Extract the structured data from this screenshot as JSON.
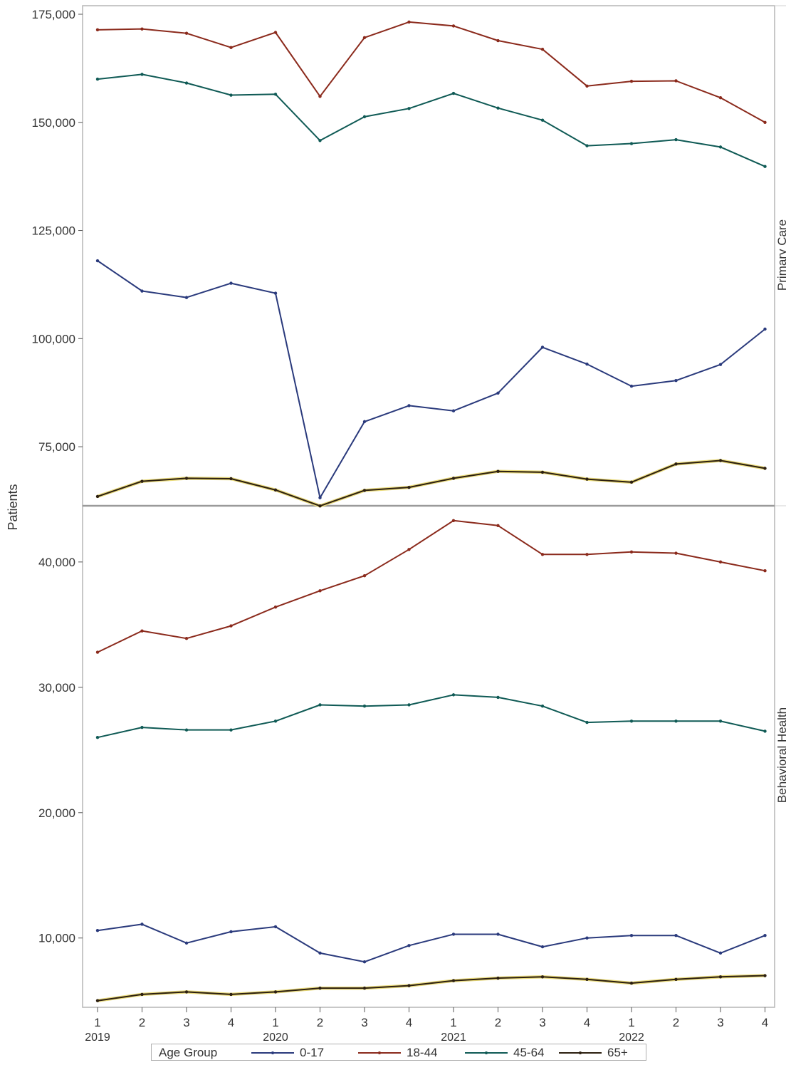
{
  "chart_data": {
    "type": "line",
    "ylabel": "Patients",
    "x": [
      "1",
      "2",
      "3",
      "4",
      "1",
      "2",
      "3",
      "4",
      "1",
      "2",
      "3",
      "4",
      "1",
      "2",
      "3",
      "4"
    ],
    "years": [
      "2019",
      "2020",
      "2021",
      "2022"
    ],
    "legend": {
      "title": "Age Group",
      "placement": "bottom",
      "entries": [
        "0-17",
        "18-44",
        "45-64",
        "65+"
      ]
    },
    "colors": {
      "0-17": "#2a3a7c",
      "18-44": "#8b2a1c",
      "45-64": "#0f5a55",
      "65+": "#2c1f10",
      "65+_highlight": "#e8d97a"
    },
    "panels": [
      {
        "label": "Primary Care",
        "ylim": [
          62000,
          175000
        ],
        "yticks": [
          75000,
          100000,
          125000,
          150000,
          175000
        ],
        "ytick_labels": [
          "75,000",
          "100,000",
          "125,000",
          "150,000",
          "175,000"
        ],
        "series": [
          {
            "name": "0-17",
            "values": [
              118000,
              111000,
              109500,
              112800,
              110500,
              63200,
              80800,
              84500,
              83300,
              87400,
              98000,
              94100,
              89000,
              90300,
              94000,
              102200
            ]
          },
          {
            "name": "18-44",
            "values": [
              171400,
              171600,
              170600,
              167300,
              170800,
              156000,
              169600,
              173200,
              172300,
              168900,
              166900,
              158400,
              159500,
              159600,
              155700,
              150000
            ]
          },
          {
            "name": "45-64",
            "values": [
              160000,
              161100,
              159100,
              156300,
              156500,
              145800,
              151300,
              153200,
              156700,
              153300,
              150500,
              144600,
              145100,
              146000,
              144300,
              139800
            ]
          },
          {
            "name": "65+",
            "values": [
              63500,
              67000,
              67700,
              67600,
              65000,
              61300,
              64900,
              65600,
              67700,
              69300,
              69100,
              67500,
              66800,
              71000,
              71800,
              70000
            ]
          }
        ]
      },
      {
        "label": "Behavioral Health",
        "ylim": [
          4700,
          43800
        ],
        "yticks": [
          10000,
          20000,
          30000,
          40000
        ],
        "ytick_labels": [
          "10,000",
          "20,000",
          "30,000",
          "40,000"
        ],
        "series": [
          {
            "name": "0-17",
            "values": [
              10600,
              11100,
              9600,
              10500,
              10900,
              8800,
              8100,
              9400,
              10300,
              10300,
              9300,
              10000,
              10200,
              10200,
              8800,
              10200
            ]
          },
          {
            "name": "18-44",
            "values": [
              32800,
              34500,
              33900,
              34900,
              36400,
              37700,
              38900,
              41000,
              43300,
              42900,
              40600,
              40600,
              40800,
              40700,
              40000,
              39300
            ]
          },
          {
            "name": "45-64",
            "values": [
              26000,
              26800,
              26600,
              26600,
              27300,
              28600,
              28500,
              28600,
              29400,
              29200,
              28500,
              27200,
              27300,
              27300,
              27300,
              26500
            ]
          },
          {
            "name": "65+",
            "values": [
              5000,
              5500,
              5700,
              5500,
              5700,
              6000,
              6000,
              6200,
              6600,
              6800,
              6900,
              6700,
              6400,
              6700,
              6900,
              7000
            ]
          }
        ]
      }
    ]
  }
}
